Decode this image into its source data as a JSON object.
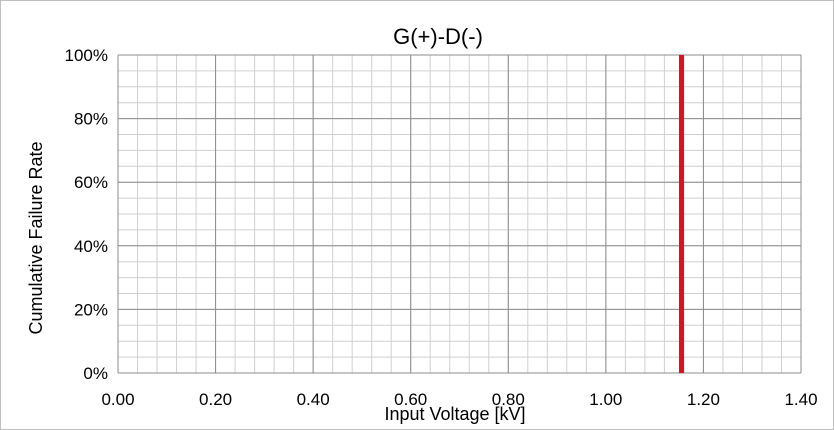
{
  "chart_data": {
    "type": "line",
    "title": "G(+)-D(-)",
    "xlabel": "Input Voltage [kV]",
    "ylabel": "Cumulative Failure Rate",
    "xlim": [
      0,
      1.4
    ],
    "ylim": [
      0,
      100
    ],
    "x_ticks": [
      "0.00",
      "0.20",
      "0.40",
      "0.60",
      "0.80",
      "1.00",
      "1.20",
      "1.40"
    ],
    "y_ticks": [
      "0%",
      "20%",
      "40%",
      "60%",
      "80%",
      "100%"
    ],
    "grid": true,
    "x_minor_step": 0.04,
    "y_minor_step": 5,
    "series": [
      {
        "color": "#d9121f",
        "x": [
          1.155,
          1.155
        ],
        "y": [
          0,
          100
        ]
      }
    ]
  }
}
